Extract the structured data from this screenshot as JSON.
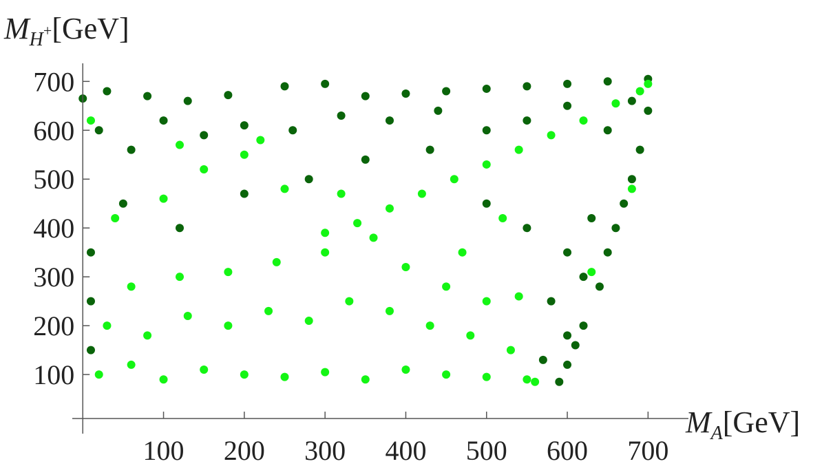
{
  "chart_data": {
    "type": "scatter",
    "xlabel": {
      "main": "M",
      "sub": "A",
      "unit": "[GeV]"
    },
    "ylabel": {
      "main": "M",
      "sub": "H",
      "sup": "+",
      "unit": "[GeV]"
    },
    "xlim": [
      -13,
      750
    ],
    "ylim": [
      10,
      730
    ],
    "xticks": [
      100,
      200,
      300,
      400,
      500,
      600,
      700
    ],
    "yticks": [
      100,
      200,
      300,
      400,
      500,
      600,
      700
    ],
    "series": [
      {
        "color": "#0a640a",
        "x": [
          0,
          30,
          80,
          130,
          180,
          250,
          300,
          350,
          400,
          450,
          500,
          550,
          600,
          650,
          700,
          590,
          600,
          610,
          620,
          640,
          650,
          660,
          670,
          680,
          690,
          700,
          20,
          60,
          100,
          150,
          200,
          260,
          320,
          380,
          440,
          500,
          550,
          600,
          50,
          120,
          200,
          280,
          350,
          430,
          500,
          550,
          600,
          620,
          580,
          600,
          630,
          10,
          10,
          10,
          650,
          680,
          570
        ],
        "y": [
          665,
          680,
          670,
          660,
          672,
          690,
          695,
          670,
          675,
          680,
          685,
          690,
          695,
          700,
          705,
          85,
          120,
          160,
          200,
          280,
          350,
          400,
          450,
          500,
          560,
          640,
          600,
          560,
          620,
          590,
          610,
          600,
          630,
          620,
          640,
          600,
          620,
          650,
          450,
          400,
          470,
          500,
          540,
          560,
          450,
          400,
          350,
          300,
          250,
          180,
          420,
          350,
          250,
          150,
          600,
          660,
          130
        ]
      },
      {
        "color": "#14f514",
        "x": [
          300,
          340,
          380,
          420,
          460,
          500,
          540,
          580,
          620,
          660,
          690,
          700,
          20,
          60,
          100,
          150,
          200,
          250,
          300,
          350,
          400,
          450,
          500,
          550,
          30,
          80,
          130,
          180,
          230,
          280,
          330,
          380,
          430,
          480,
          530,
          60,
          120,
          180,
          240,
          300,
          360,
          400,
          450,
          500,
          40,
          100,
          150,
          200,
          250,
          320,
          120,
          220,
          10,
          680,
          630,
          560,
          540,
          470,
          520
        ],
        "y": [
          390,
          410,
          440,
          470,
          500,
          530,
          560,
          590,
          620,
          655,
          680,
          695,
          100,
          120,
          90,
          110,
          100,
          95,
          105,
          90,
          110,
          100,
          95,
          90,
          200,
          180,
          220,
          200,
          230,
          210,
          250,
          230,
          200,
          180,
          150,
          280,
          300,
          310,
          330,
          350,
          380,
          320,
          280,
          250,
          420,
          460,
          520,
          550,
          480,
          470,
          570,
          580,
          620,
          480,
          310,
          85,
          260,
          350,
          420
        ]
      }
    ]
  }
}
